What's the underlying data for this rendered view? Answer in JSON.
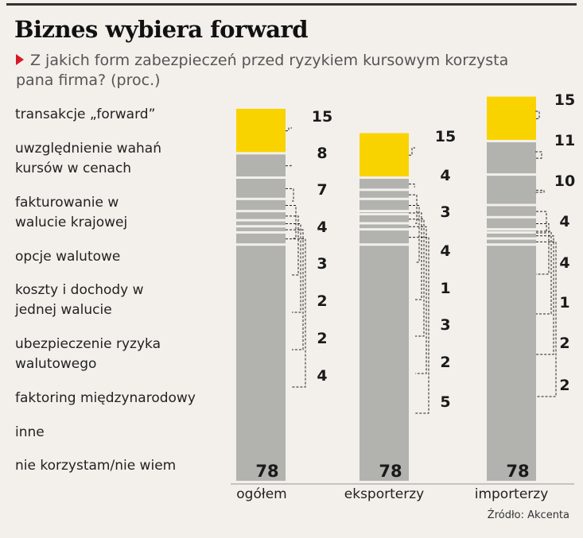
{
  "header": {
    "title": "Biznes wybiera forward",
    "subtitle": "Z jakich form zabezpieczeń przed ryzykiem kursowym korzysta pana firma? (proc.)"
  },
  "source": "Źródło: Akcenta",
  "chart_data": {
    "type": "bar",
    "stacked": true,
    "title": "Biznes wybiera forward",
    "subtitle": "Z jakich form zabezpieczeń przed ryzykiem kursowym korzysta pana firma? (proc.)",
    "categories": [
      "ogółem",
      "eksporterzy",
      "importerzy"
    ],
    "series": [
      {
        "name": "transakcje „forward”",
        "values": [
          15,
          15,
          15
        ]
      },
      {
        "name": "uwzględnienie wahań kursów w cenach",
        "values": [
          8,
          4,
          11
        ]
      },
      {
        "name": "fakturowanie w walucie krajowej",
        "values": [
          7,
          3,
          10
        ]
      },
      {
        "name": "opcje walutowe",
        "values": [
          4,
          4,
          4
        ]
      },
      {
        "name": "koszty i dochody w jednej walucie",
        "values": [
          3,
          1,
          4
        ]
      },
      {
        "name": "ubezpieczenie ryzyka walutowego",
        "values": [
          2,
          3,
          1
        ]
      },
      {
        "name": "faktoring międzynarodowy",
        "values": [
          2,
          2,
          2
        ]
      },
      {
        "name": "inne",
        "values": [
          4,
          5,
          2
        ]
      },
      {
        "name": "nie korzystam/nie wiem",
        "values": [
          78,
          78,
          78
        ]
      }
    ],
    "colors": {
      "forward": "#f9d300",
      "other": "#b2b2ae"
    },
    "xlabel": "",
    "ylabel": "proc."
  }
}
